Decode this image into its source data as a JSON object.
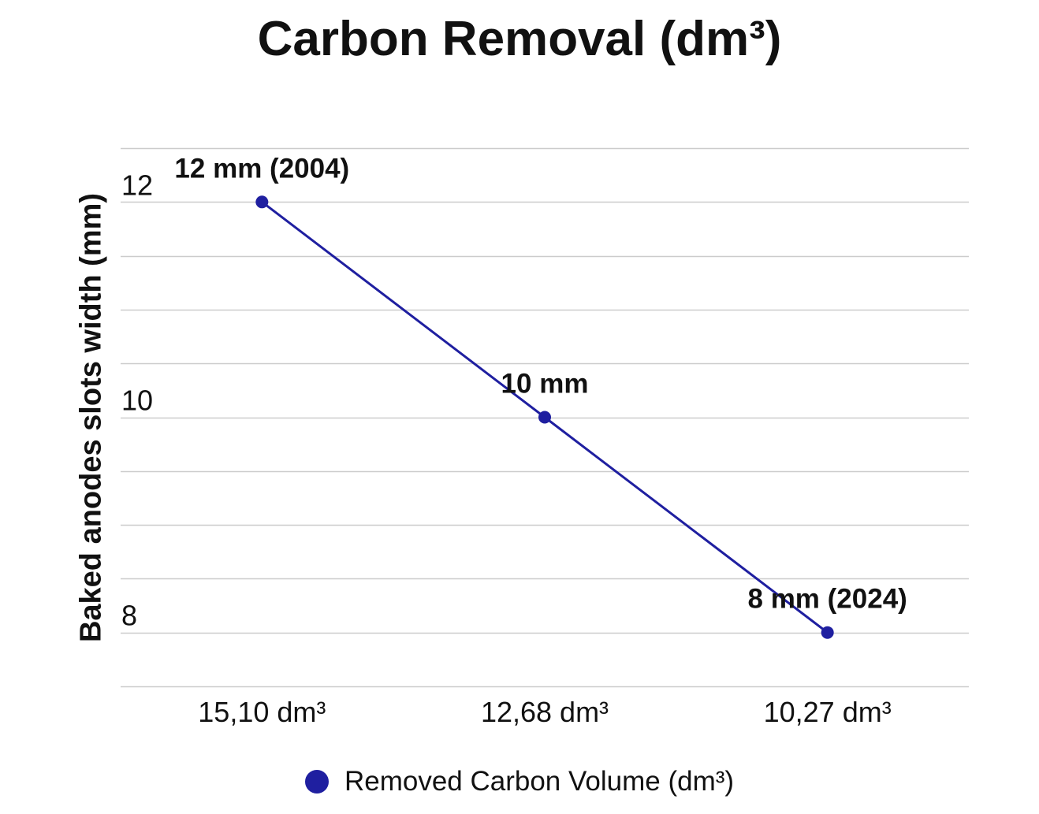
{
  "colors": {
    "series": "#1f1fa0",
    "grid": "#cccccc",
    "text": "#111111",
    "background": "#ffffff"
  },
  "chart_data": {
    "type": "line",
    "title": "Carbon Removal (dm³)",
    "xlabel": "",
    "ylabel": "Baked anodes slots width (mm)",
    "categories": [
      "15,10 dm³",
      "12,68 dm³",
      "10,27 dm³"
    ],
    "series": [
      {
        "name": "Removed Carbon Volume (dm³)",
        "values": [
          12,
          10,
          8
        ],
        "data_labels": [
          "12 mm (2004)",
          "10 mm",
          "8 mm (2024)"
        ]
      }
    ],
    "ylim": [
      7.5,
      12.5
    ],
    "yticks": [
      8,
      10,
      12
    ],
    "ytick_labels": [
      "8",
      "10",
      "12"
    ],
    "gridline_step": 0.5,
    "grid": true,
    "legend_position": "bottom"
  }
}
